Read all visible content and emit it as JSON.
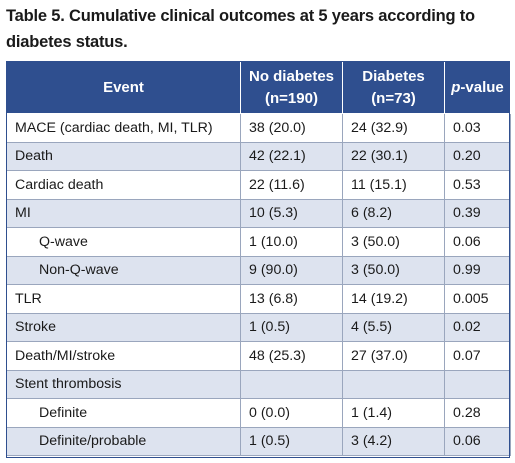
{
  "caption": {
    "line1": "Table 5. Cumulative clinical outcomes at 5 years according to",
    "line2": "diabetes status."
  },
  "header": {
    "event": "Event",
    "no_diabetes_1": "No diabetes",
    "no_diabetes_2": "(n=190)",
    "diabetes_1": "Diabetes",
    "diabetes_2": "(n=73)",
    "p_value_italic": "p",
    "p_value_rest": "-value"
  },
  "rows": [
    {
      "event": "MACE (cardiac death, MI, TLR)",
      "no_diabetes": "38 (20.0)",
      "diabetes": "24 (32.9)",
      "p": "0.03"
    },
    {
      "event": "Death",
      "no_diabetes": "42 (22.1)",
      "diabetes": "22 (30.1)",
      "p": "0.20"
    },
    {
      "event": "Cardiac death",
      "no_diabetes": "22 (11.6)",
      "diabetes": "11 (15.1)",
      "p": "0.53"
    },
    {
      "event": "MI",
      "no_diabetes": "10 (5.3)",
      "diabetes": "6 (8.2)",
      "p": "0.39"
    },
    {
      "event": "Q-wave",
      "no_diabetes": "1 (10.0)",
      "diabetes": "3 (50.0)",
      "p": "0.06"
    },
    {
      "event": "Non-Q-wave",
      "no_diabetes": "9 (90.0)",
      "diabetes": "3 (50.0)",
      "p": "0.99"
    },
    {
      "event": "TLR",
      "no_diabetes": "13 (6.8)",
      "diabetes": "14 (19.2)",
      "p": "0.005"
    },
    {
      "event": "Stroke",
      "no_diabetes": "1 (0.5)",
      "diabetes": "4 (5.5)",
      "p": "0.02"
    },
    {
      "event": "Death/MI/stroke",
      "no_diabetes": "48 (25.3)",
      "diabetes": "27 (37.0)",
      "p": "0.07"
    },
    {
      "event": "Stent thrombosis",
      "no_diabetes": "",
      "diabetes": "",
      "p": ""
    },
    {
      "event": "Definite",
      "no_diabetes": "0 (0.0)",
      "diabetes": "1 (1.4)",
      "p": "0.28"
    },
    {
      "event": "Definite/probable",
      "no_diabetes": "1 (0.5)",
      "diabetes": "3 (4.2)",
      "p": "0.06"
    }
  ]
}
